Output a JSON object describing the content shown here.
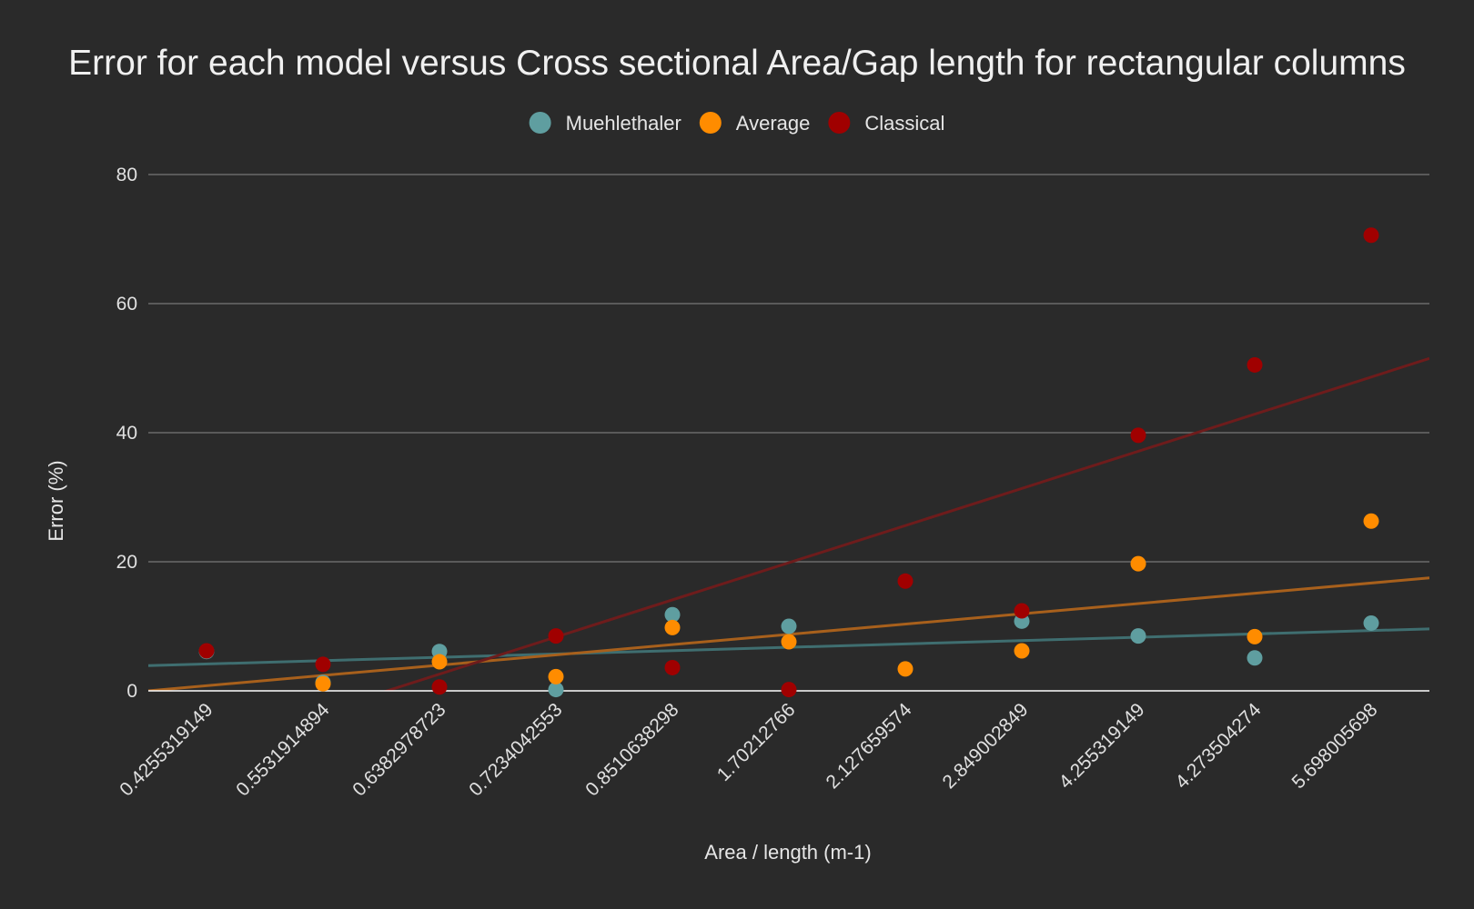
{
  "chart_data": {
    "type": "scatter",
    "title": "Error for each model versus Cross sectional Area/Gap length for rectangular columns",
    "xlabel": "Area / length (m-1)",
    "ylabel": "Error (%)",
    "ylim": [
      0,
      80
    ],
    "yticks": [
      "0",
      "20",
      "40",
      "60",
      "80"
    ],
    "grid": true,
    "legend_position": "top",
    "categories": [
      "0.4255319149",
      "0.5531914894",
      "0.6382978723",
      "0.7234042553",
      "0.8510638298",
      "1.70212766",
      "2.127659574",
      "2.849002849",
      "4.255319149",
      "4.273504274",
      "5.698005698"
    ],
    "series": [
      {
        "name": "Muehlethaler",
        "color": "#5f9ea0",
        "trendline_color": "#3f6e70",
        "values": [
          6.1,
          1.3,
          6.1,
          0.2,
          11.8,
          10.0,
          null,
          10.8,
          8.5,
          5.1,
          10.5
        ],
        "trendline": [
          3.9,
          9.6
        ]
      },
      {
        "name": "Average",
        "color": "#ff8c00",
        "trendline_color": "#a8601c",
        "values": [
          null,
          1.1,
          4.5,
          2.2,
          9.8,
          7.6,
          3.4,
          6.2,
          19.7,
          8.4,
          26.3
        ],
        "trendline": [
          0.0,
          17.5
        ]
      },
      {
        "name": "Classical",
        "color": "#a00000",
        "trendline_color": "#6e1c1c",
        "values": [
          6.2,
          4.1,
          0.6,
          8.5,
          3.6,
          0.2,
          17.0,
          12.4,
          39.6,
          50.5,
          70.6
        ],
        "trendline": [
          -11.8,
          51.5
        ]
      }
    ]
  }
}
